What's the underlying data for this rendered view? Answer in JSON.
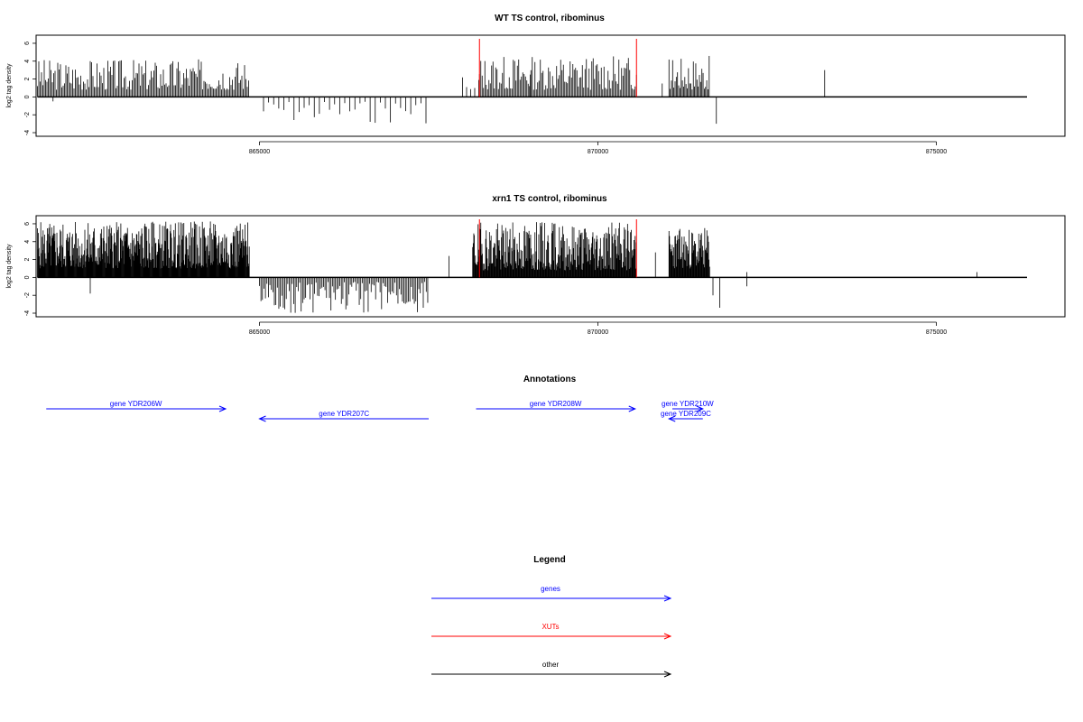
{
  "chart_data": [
    {
      "type": "bar",
      "title": "WT TS control, ribominus",
      "ylabel": "log2 tag density",
      "xlabel": "",
      "xlim": [
        861700,
        876900
      ],
      "ylim": [
        -4,
        6.5
      ],
      "xticks": [
        865000,
        870000,
        875000
      ],
      "yticks": [
        6,
        4,
        2,
        0,
        -2,
        -4
      ],
      "grid": false,
      "xut_markers": [
        868250,
        870570
      ],
      "segments": [
        {
          "x0": 861720,
          "x1": 864850,
          "dir": 1,
          "min": 0.8,
          "max": 4.3,
          "step": 20,
          "seed": 3
        },
        {
          "x0": 865060,
          "x1": 867500,
          "dir": -1,
          "min": 0.5,
          "max": 3.0,
          "step": 75,
          "seed": 7
        },
        {
          "x0": 868000,
          "x1": 868250,
          "dir": 1,
          "min": 0.8,
          "max": 2.4,
          "step": 60,
          "seed": 11
        },
        {
          "x0": 868250,
          "x1": 870570,
          "dir": 1,
          "min": 0.8,
          "max": 4.6,
          "step": 20,
          "seed": 13
        },
        {
          "x0": 871050,
          "x1": 871650,
          "dir": 1,
          "min": 0.8,
          "max": 4.6,
          "step": 18,
          "seed": 17
        }
      ],
      "extra_bars": [
        {
          "x": 861950,
          "y": -0.5
        },
        {
          "x": 869000,
          "y": 2.5
        },
        {
          "x": 870950,
          "y": 1.5
        },
        {
          "x": 871750,
          "y": -3.0
        },
        {
          "x": 873350,
          "y": 3.0
        }
      ]
    },
    {
      "type": "bar",
      "title": "xrn1 TS control, ribominus",
      "ylabel": "log2 tag density",
      "xlabel": "",
      "xlim": [
        861700,
        876900
      ],
      "ylim": [
        -4,
        6.5
      ],
      "xticks": [
        865000,
        870000,
        875000
      ],
      "yticks": [
        6,
        4,
        2,
        0,
        -2,
        -4
      ],
      "grid": false,
      "xut_markers": [
        868250,
        870570
      ],
      "segments": [
        {
          "x0": 861720,
          "x1": 864850,
          "dir": 1,
          "min": 1.0,
          "max": 6.3,
          "step": 7,
          "seed": 5
        },
        {
          "x0": 865000,
          "x1": 867500,
          "dir": -1,
          "min": 0.5,
          "max": 4.0,
          "step": 22,
          "seed": 9
        },
        {
          "x0": 868150,
          "x1": 870570,
          "dir": 1,
          "min": 0.8,
          "max": 6.2,
          "step": 8,
          "seed": 19
        },
        {
          "x0": 871050,
          "x1": 871650,
          "dir": 1,
          "min": 1.0,
          "max": 5.6,
          "step": 8,
          "seed": 23
        }
      ],
      "extra_bars": [
        {
          "x": 862500,
          "y": -1.8
        },
        {
          "x": 867800,
          "y": 2.4
        },
        {
          "x": 870850,
          "y": 2.8
        },
        {
          "x": 871700,
          "y": -2.0
        },
        {
          "x": 871800,
          "y": -3.4
        },
        {
          "x": 872200,
          "y": 0.6
        },
        {
          "x": 872200,
          "y": -1.0
        },
        {
          "x": 875600,
          "y": 0.6
        }
      ]
    }
  ],
  "annotations": {
    "title": "Annotations",
    "genes": [
      {
        "label": "gene YDR206W",
        "strand": "+",
        "start": 861850,
        "end": 864500,
        "row": 0
      },
      {
        "label": "gene YDR207C",
        "strand": "-",
        "start": 865000,
        "end": 867500,
        "row": 1
      },
      {
        "label": "gene YDR208W",
        "strand": "+",
        "start": 868200,
        "end": 870550,
        "row": 0
      },
      {
        "label": "gene YDR210W",
        "strand": "+",
        "start": 871100,
        "end": 871550,
        "row": 0
      },
      {
        "label": "gene YDR209C",
        "strand": "-",
        "start": 871050,
        "end": 871550,
        "row": 1
      }
    ],
    "color": "#0000ff"
  },
  "legend": {
    "title": "Legend",
    "items": [
      {
        "label": "genes",
        "color": "#0000ff"
      },
      {
        "label": "XUTs",
        "color": "#ff0000"
      },
      {
        "label": "other",
        "color": "#000000"
      }
    ]
  }
}
